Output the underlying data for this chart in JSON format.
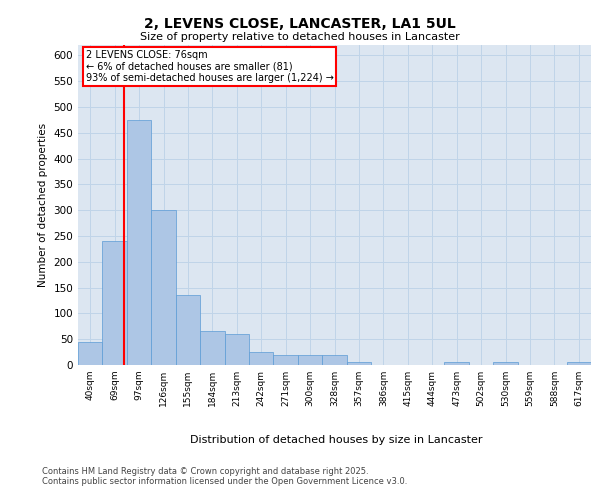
{
  "title_line1": "2, LEVENS CLOSE, LANCASTER, LA1 5UL",
  "title_line2": "Size of property relative to detached houses in Lancaster",
  "xlabel": "Distribution of detached houses by size in Lancaster",
  "ylabel": "Number of detached properties",
  "categories": [
    "40sqm",
    "69sqm",
    "97sqm",
    "126sqm",
    "155sqm",
    "184sqm",
    "213sqm",
    "242sqm",
    "271sqm",
    "300sqm",
    "328sqm",
    "357sqm",
    "386sqm",
    "415sqm",
    "444sqm",
    "473sqm",
    "502sqm",
    "530sqm",
    "559sqm",
    "588sqm",
    "617sqm"
  ],
  "values": [
    45,
    240,
    475,
    300,
    135,
    65,
    60,
    25,
    20,
    20,
    20,
    5,
    0,
    0,
    0,
    5,
    0,
    5,
    0,
    0,
    5
  ],
  "bar_color": "#adc6e5",
  "bar_edge_color": "#5b9bd5",
  "grid_color": "#c0d4e8",
  "background_color": "#dce6f1",
  "annotation_box_text": "2 LEVENS CLOSE: 76sqm\n← 6% of detached houses are smaller (81)\n93% of semi-detached houses are larger (1,224) →",
  "red_line_x": 1.38,
  "ylim": [
    0,
    620
  ],
  "yticks": [
    0,
    50,
    100,
    150,
    200,
    250,
    300,
    350,
    400,
    450,
    500,
    550,
    600
  ],
  "footer_line1": "Contains HM Land Registry data © Crown copyright and database right 2025.",
  "footer_line2": "Contains public sector information licensed under the Open Government Licence v3.0."
}
